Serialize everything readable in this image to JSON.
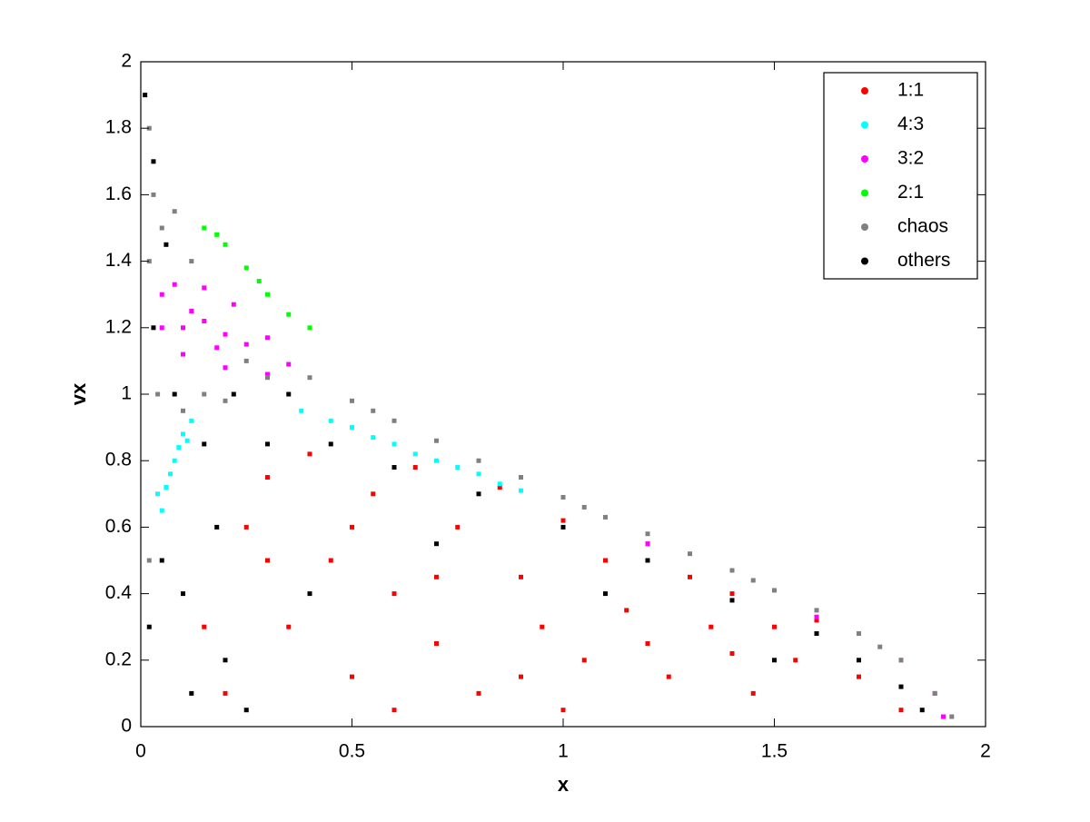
{
  "chart_data": {
    "type": "scatter",
    "xlabel": "x",
    "ylabel": "vx",
    "xlim": [
      0,
      2
    ],
    "ylim": [
      0,
      2
    ],
    "xticks": [
      0,
      0.5,
      1,
      1.5,
      2
    ],
    "yticks": [
      0,
      0.2,
      0.4,
      0.6,
      0.8,
      1,
      1.2,
      1.4,
      1.6,
      1.8,
      2
    ],
    "legend": "upper right",
    "series": [
      {
        "name": "1:1",
        "color": "#ff0000",
        "x": [
          0.25,
          0.3,
          0.35,
          0.4,
          0.45,
          0.5,
          0.55,
          0.6,
          0.65,
          0.7,
          0.75,
          0.8,
          0.85,
          0.9,
          0.95,
          1.0,
          1.05,
          1.1,
          1.15,
          1.2,
          1.25,
          1.3,
          1.35,
          1.4,
          1.45,
          1.5,
          1.55,
          1.6,
          1.7,
          1.8,
          0.2,
          0.15,
          0.6,
          1.0,
          0.3,
          0.5,
          0.7,
          0.9,
          1.2,
          1.4
        ],
        "values": [
          0.6,
          0.75,
          0.3,
          0.82,
          0.5,
          0.15,
          0.7,
          0.4,
          0.78,
          0.25,
          0.6,
          0.1,
          0.72,
          0.45,
          0.3,
          0.62,
          0.2,
          0.5,
          0.35,
          0.55,
          0.15,
          0.45,
          0.3,
          0.4,
          0.1,
          0.3,
          0.2,
          0.32,
          0.15,
          0.05,
          0.1,
          0.3,
          0.05,
          0.05,
          0.5,
          0.6,
          0.45,
          0.15,
          0.25,
          0.22
        ]
      },
      {
        "name": "4:3",
        "color": "#00ffff",
        "x": [
          0.05,
          0.06,
          0.08,
          0.1,
          0.12,
          0.07,
          0.09,
          0.04,
          0.11,
          0.38,
          0.45,
          0.5,
          0.55,
          0.6,
          0.65,
          0.7,
          0.75,
          0.8,
          0.85,
          0.9
        ],
        "values": [
          0.65,
          0.72,
          0.8,
          0.88,
          0.92,
          0.76,
          0.84,
          0.7,
          0.86,
          0.95,
          0.92,
          0.9,
          0.87,
          0.85,
          0.82,
          0.8,
          0.78,
          0.76,
          0.73,
          0.71
        ]
      },
      {
        "name": "3:2",
        "color": "#ff00ff",
        "x": [
          0.05,
          0.08,
          0.15,
          0.22,
          0.3,
          0.35,
          0.3,
          0.2,
          0.1,
          0.05,
          0.1,
          0.15,
          0.2,
          0.25,
          0.12,
          0.18,
          1.2,
          1.6,
          1.8,
          1.88,
          1.9
        ],
        "values": [
          1.3,
          1.33,
          1.32,
          1.27,
          1.17,
          1.09,
          1.06,
          1.08,
          1.12,
          1.2,
          1.2,
          1.22,
          1.18,
          1.15,
          1.25,
          1.14,
          0.55,
          0.33,
          0.2,
          0.1,
          0.03
        ]
      },
      {
        "name": "2:1",
        "color": "#00ff00",
        "x": [
          0.15,
          0.2,
          0.25,
          0.3,
          0.35,
          0.4,
          0.18,
          0.28
        ],
        "values": [
          1.5,
          1.45,
          1.38,
          1.3,
          1.24,
          1.2,
          1.48,
          1.34
        ]
      },
      {
        "name": "chaos",
        "color": "#808080",
        "x": [
          0.02,
          0.03,
          0.05,
          0.02,
          0.04,
          0.1,
          0.15,
          0.2,
          0.3,
          0.4,
          0.5,
          0.6,
          0.7,
          0.8,
          0.9,
          1.0,
          1.1,
          1.2,
          1.3,
          1.4,
          1.5,
          1.6,
          1.7,
          1.8,
          1.88,
          1.92,
          0.12,
          0.08,
          0.25,
          0.55,
          1.05,
          1.45,
          1.75,
          0.02
        ],
        "values": [
          1.8,
          1.6,
          1.5,
          1.4,
          1.0,
          0.95,
          1.0,
          0.98,
          1.05,
          1.05,
          0.98,
          0.92,
          0.86,
          0.8,
          0.75,
          0.69,
          0.63,
          0.58,
          0.52,
          0.47,
          0.41,
          0.35,
          0.28,
          0.2,
          0.1,
          0.03,
          1.4,
          1.55,
          1.1,
          0.95,
          0.66,
          0.44,
          0.24,
          0.5
        ]
      },
      {
        "name": "others",
        "color": "#000000",
        "x": [
          0.01,
          0.03,
          0.06,
          0.03,
          0.08,
          0.15,
          0.05,
          0.1,
          0.02,
          0.2,
          0.25,
          0.18,
          0.3,
          0.45,
          0.6,
          0.8,
          1.0,
          1.2,
          1.4,
          1.6,
          1.7,
          1.8,
          1.85,
          0.22,
          0.35,
          0.7,
          1.1,
          1.5,
          0.12,
          0.4
        ],
        "values": [
          1.9,
          1.7,
          1.45,
          1.2,
          1.0,
          0.85,
          0.5,
          0.4,
          0.3,
          0.2,
          0.05,
          0.6,
          0.85,
          0.85,
          0.78,
          0.7,
          0.6,
          0.5,
          0.38,
          0.28,
          0.2,
          0.12,
          0.05,
          1.0,
          1.0,
          0.55,
          0.4,
          0.2,
          0.1,
          0.4
        ]
      }
    ]
  }
}
